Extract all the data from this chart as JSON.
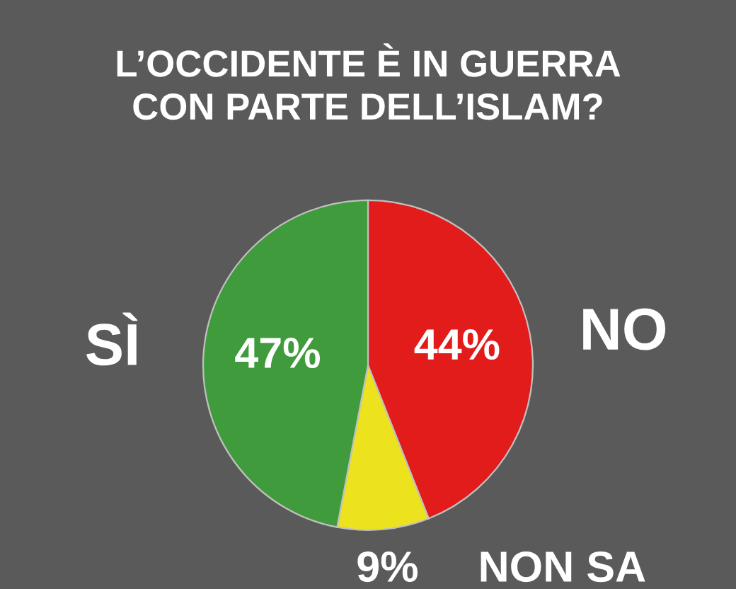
{
  "chart_data": {
    "type": "pie",
    "title": "L’OCCIDENTE È IN GUERRA\nCON PARTE DELL’ISLAM?",
    "categories": [
      "NO",
      "NON SA",
      "SÌ"
    ],
    "values": [
      44,
      9,
      47
    ],
    "value_labels": [
      "44%",
      "9%",
      "47%"
    ],
    "colors": [
      "#e21b1b",
      "#ece21e",
      "#3f9b3c"
    ]
  }
}
